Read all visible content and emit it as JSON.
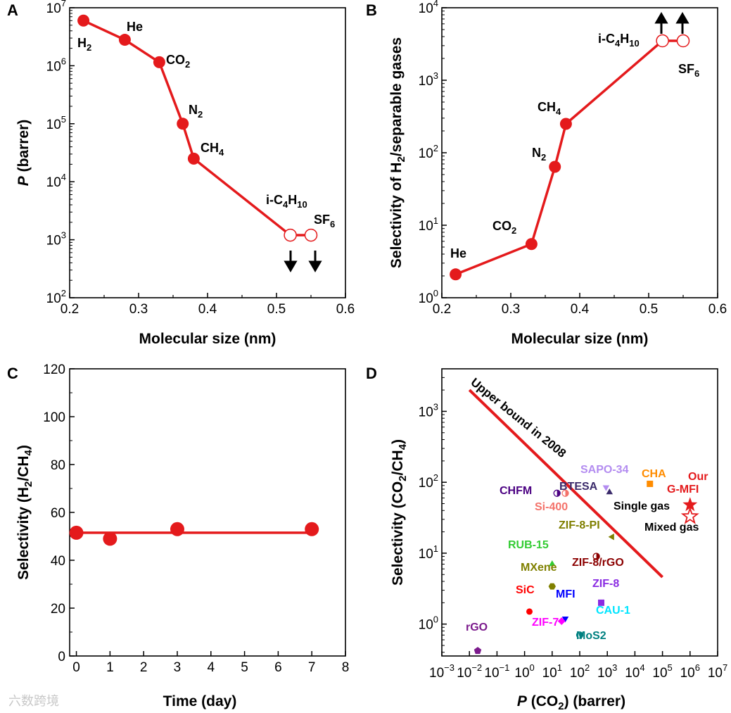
{
  "panels": [
    "A",
    "B",
    "C",
    "D"
  ],
  "colors": {
    "accent": "#e41a1c",
    "axis": "#000000"
  },
  "watermark": "六数跨境",
  "chart_data": [
    {
      "panel": "A",
      "type": "line",
      "xlabel": "Molecular size (nm)",
      "ylabel_italic": "P",
      "ylabel_rest": " (barrer)",
      "xlim": [
        0.2,
        0.6
      ],
      "ylim": [
        100,
        10000000
      ],
      "yscale": "log",
      "xticks": [
        0.2,
        0.3,
        0.4,
        0.5,
        0.6
      ],
      "yticks_exp": [
        2,
        3,
        4,
        5,
        6,
        7
      ],
      "points": [
        {
          "x": 0.22,
          "y": 6000000,
          "label": "H2"
        },
        {
          "x": 0.28,
          "y": 2800000,
          "label": "He"
        },
        {
          "x": 0.33,
          "y": 1150000,
          "label": "CO2"
        },
        {
          "x": 0.364,
          "y": 100000,
          "label": "N2"
        },
        {
          "x": 0.38,
          "y": 25000,
          "label": "CH4"
        }
      ],
      "open_points": [
        {
          "x": 0.52,
          "y": 1200,
          "label": "i-C4H10"
        },
        {
          "x": 0.55,
          "y": 1200,
          "label": "SF6"
        }
      ],
      "arrows": "down"
    },
    {
      "panel": "B",
      "type": "line",
      "xlabel": "Molecular size (nm)",
      "ylabel": "Selectivity of H2/separable gases",
      "xlim": [
        0.2,
        0.6
      ],
      "ylim": [
        1,
        10000
      ],
      "yscale": "log",
      "xticks": [
        0.2,
        0.3,
        0.4,
        0.5,
        0.6
      ],
      "yticks_exp": [
        0,
        1,
        2,
        3,
        4
      ],
      "points": [
        {
          "x": 0.22,
          "y": 2.1,
          "label": "He"
        },
        {
          "x": 0.33,
          "y": 5.5,
          "label": "CO2"
        },
        {
          "x": 0.364,
          "y": 64,
          "label": "N2"
        },
        {
          "x": 0.38,
          "y": 250,
          "label": "CH4"
        }
      ],
      "open_points": [
        {
          "x": 0.52,
          "y": 3500,
          "label": "i-C4H10"
        },
        {
          "x": 0.55,
          "y": 3500,
          "label": "SF6"
        }
      ],
      "arrows": "up"
    },
    {
      "panel": "C",
      "type": "line",
      "xlabel": "Time (day)",
      "ylabel": "Selectivity (H2/CH4)",
      "xlim": [
        -0.2,
        8
      ],
      "ylim": [
        0,
        120
      ],
      "xticks": [
        0,
        1,
        2,
        3,
        4,
        5,
        6,
        7,
        8
      ],
      "yticks": [
        0,
        20,
        40,
        60,
        80,
        100,
        120
      ],
      "points": [
        {
          "x": 0,
          "y": 51.5
        },
        {
          "x": 1,
          "y": 49
        },
        {
          "x": 3,
          "y": 53
        },
        {
          "x": 7,
          "y": 53
        }
      ],
      "fit_line": {
        "x": [
          0,
          7
        ],
        "y": [
          51.5,
          51.5
        ]
      }
    },
    {
      "panel": "D",
      "type": "scatter",
      "xlabel_italic": "P",
      "xlabel_rest": " (CO2) (barrer)",
      "ylabel": "Selectivity (CO2/CH4)",
      "xscale": "log",
      "yscale": "log",
      "xlim_exp": [
        -3,
        7
      ],
      "ylim_exp": [
        -0.45,
        3.6
      ],
      "xticks_exp": [
        -3,
        -2,
        -1,
        0,
        1,
        2,
        3,
        4,
        5,
        6,
        7
      ],
      "yticks_exp": [
        0,
        1,
        2,
        3
      ],
      "upper_bound": {
        "label": "Upper bound in 2008",
        "x": [
          0.01,
          100000
        ],
        "y": [
          2000,
          4.6
        ]
      },
      "points": [
        {
          "name": "rGO",
          "x": 0.02,
          "y": 0.42,
          "color": "#7b1a8c",
          "marker": "pentagon"
        },
        {
          "name": "SiC",
          "x": 1.5,
          "y": 1.5,
          "color": "#ff0000",
          "marker": "circle"
        },
        {
          "name": "MFI",
          "x": 30,
          "y": 1.2,
          "color": "#0000ff",
          "marker": "tri-down"
        },
        {
          "name": "ZIF-7",
          "x": 22,
          "y": 1.1,
          "color": "#ff00ff",
          "marker": "diamond"
        },
        {
          "name": "MoS2",
          "x": 100,
          "y": 0.7,
          "color": "#008080",
          "marker": "half-circle"
        },
        {
          "name": "ZIF-8",
          "x": 600,
          "y": 2.0,
          "color": "#8a2be2",
          "marker": "square"
        },
        {
          "name": "CAU-1",
          "x": 1000,
          "y": 1.1,
          "color": "#00e5ff",
          "marker": "none"
        },
        {
          "name": "MXene",
          "x": 10,
          "y": 3.4,
          "color": "#808000",
          "marker": "hexagon"
        },
        {
          "name": "RUB-15",
          "x": 10,
          "y": 7.0,
          "color": "#33cc33",
          "marker": "triangle"
        },
        {
          "name": "ZIF-8/rGO",
          "x": 400,
          "y": 9.0,
          "color": "#8b0000",
          "marker": "half-circle"
        },
        {
          "name": "ZIF-8-PI",
          "x": 1500,
          "y": 17,
          "color": "#7f7f00",
          "marker": "tri-left"
        },
        {
          "name": "Si-400",
          "x": 30,
          "y": 70,
          "color": "#f4726a",
          "marker": "half-circle"
        },
        {
          "name": "CHFM",
          "x": 15,
          "y": 70,
          "color": "#4b0082",
          "marker": "half-circle"
        },
        {
          "name": "BTESA",
          "x": 1200,
          "y": 72,
          "color": "#3b2b6b",
          "marker": "triangle"
        },
        {
          "name": "SAPO-34",
          "x": 900,
          "y": 85,
          "color": "#b38cf0",
          "marker": "tri-down"
        },
        {
          "name": "CHA",
          "x": 35000,
          "y": 95,
          "color": "#ff8c00",
          "marker": "square"
        },
        {
          "name": "Our G-MFI Single gas",
          "x": 1000000,
          "y": 48,
          "color": "#e41a1c",
          "marker": "star"
        },
        {
          "name": "Our G-MFI Mixed gas",
          "x": 1000000,
          "y": 33,
          "color": "#e41a1c",
          "marker": "star-open"
        }
      ],
      "labels": {
        "our": "Our",
        "gmfi": "G-MFI",
        "single": "Single gas",
        "mixed": "Mixed gas"
      }
    }
  ]
}
